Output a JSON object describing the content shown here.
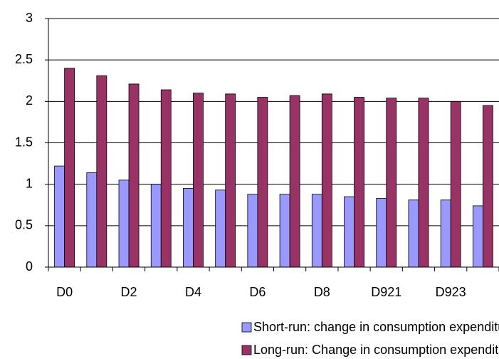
{
  "chart_data": {
    "type": "bar",
    "categories": [
      "D0",
      null,
      "D2",
      null,
      "D4",
      null,
      "D6",
      null,
      "D8",
      null,
      "D921",
      null,
      "D923",
      null
    ],
    "series": [
      {
        "name": "Short-run: change in consumption expenditure",
        "color": "#9999ff",
        "values": [
          1.22,
          1.14,
          1.05,
          1.0,
          0.95,
          0.93,
          0.88,
          0.88,
          0.88,
          0.85,
          0.83,
          0.81,
          0.81,
          0.74
        ]
      },
      {
        "name": "Long-run: Change in consumption expenditure",
        "color": "#993366",
        "values": [
          2.4,
          2.31,
          2.21,
          2.14,
          2.1,
          2.09,
          2.05,
          2.07,
          2.09,
          2.05,
          2.04,
          2.04,
          2.0,
          1.95
        ]
      }
    ],
    "ylim": [
      0,
      3
    ],
    "yticks": [
      0,
      0.5,
      1,
      1.5,
      2,
      2.5,
      3
    ],
    "grid": true,
    "legend": "bottom"
  }
}
